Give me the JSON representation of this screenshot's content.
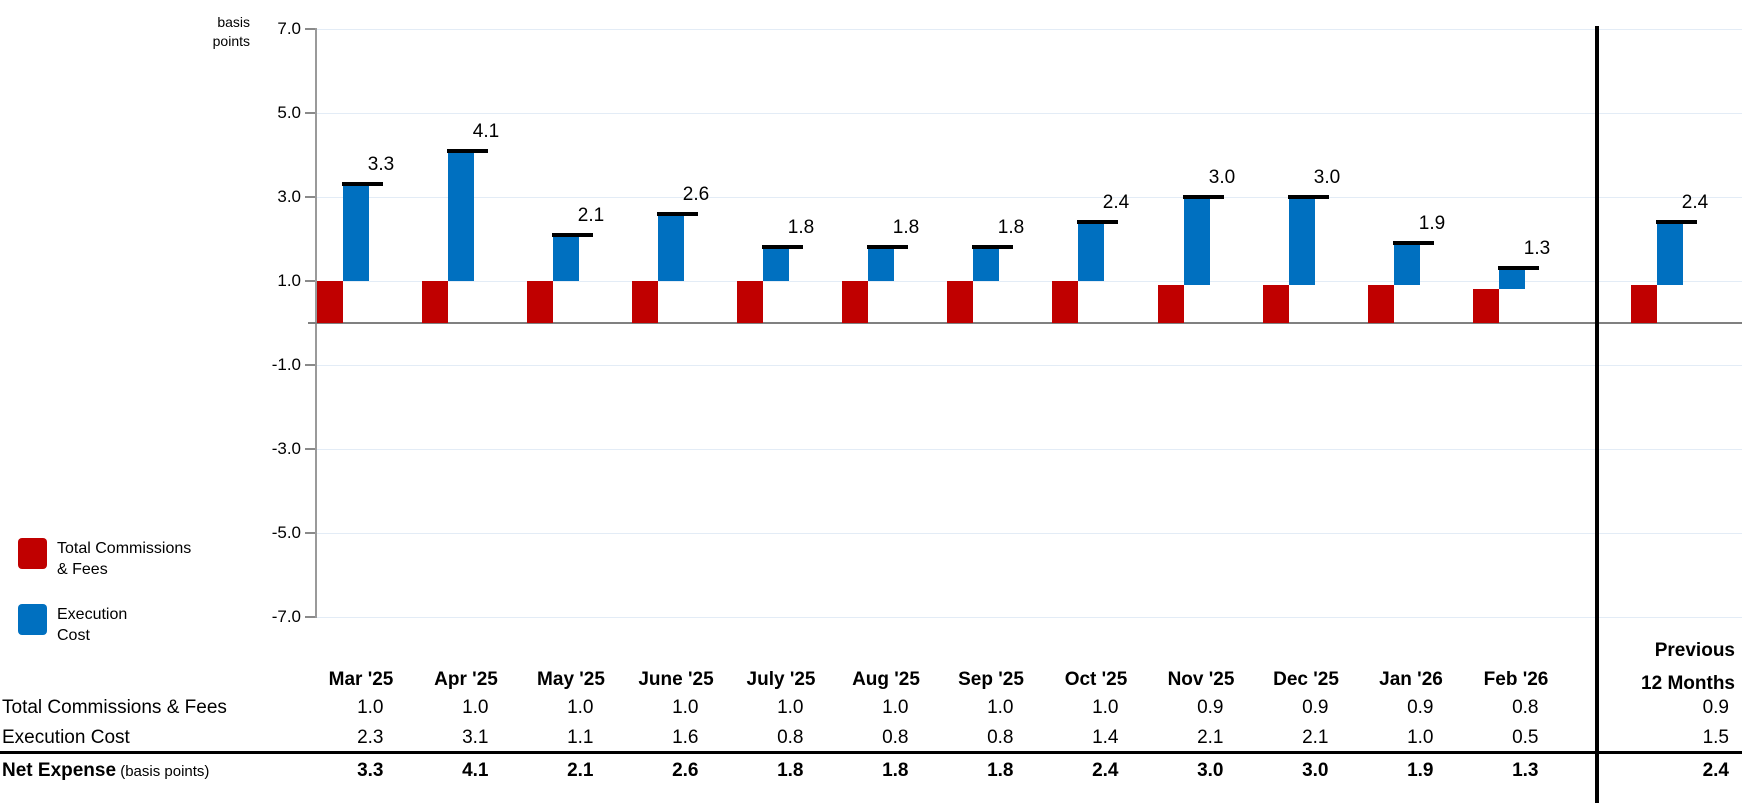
{
  "chart_data": {
    "type": "bar",
    "stacked": true,
    "title": "",
    "axis_title": "basis\npoints",
    "ylabel": "basis points",
    "ylim": [
      -7.0,
      7.0
    ],
    "grid": true,
    "y_ticks": [
      "7.0",
      "5.0",
      "3.0",
      "1.0",
      "-1.0",
      "-3.0",
      "-5.0",
      "-7.0"
    ],
    "categories": [
      "Mar '25",
      "Apr '25",
      "May '25",
      "June '25",
      "July '25",
      "Aug '25",
      "Sep '25",
      "Oct '25",
      "Nov '25",
      "Dec '25",
      "Jan '26",
      "Feb '26",
      "Previous 12 Months"
    ],
    "series": [
      {
        "name": "Total Commissions & Fees",
        "color": "#C00000",
        "values": [
          1.0,
          1.0,
          1.0,
          1.0,
          1.0,
          1.0,
          1.0,
          1.0,
          0.9,
          0.9,
          0.9,
          0.8,
          0.9
        ]
      },
      {
        "name": "Execution Cost",
        "color": "#0070C0",
        "values": [
          2.3,
          3.1,
          1.1,
          1.6,
          0.8,
          0.8,
          0.8,
          1.4,
          2.1,
          2.1,
          1.0,
          0.5,
          1.5
        ]
      }
    ],
    "totals": [
      "3.3",
      "4.1",
      "2.1",
      "2.6",
      "1.8",
      "1.8",
      "1.8",
      "2.4",
      "3.0",
      "3.0",
      "1.9",
      "1.3",
      "2.4"
    ],
    "legend_position": "bottom-left",
    "legend": [
      {
        "label": "Total Commissions\n& Fees",
        "color": "#C00000"
      },
      {
        "label": "Execution\nCost",
        "color": "#0070C0"
      }
    ]
  },
  "table": {
    "columns": [
      "Mar '25",
      "Apr '25",
      "May '25",
      "June '25",
      "July '25",
      "Aug '25",
      "Sep '25",
      "Oct '25",
      "Nov '25",
      "Dec '25",
      "Jan '26",
      "Feb '26"
    ],
    "last_column": "Previous\n12 Months",
    "rows": [
      {
        "label": "Total Commissions & Fees",
        "suffix": "",
        "bold": false,
        "values": [
          "1.0",
          "1.0",
          "1.0",
          "1.0",
          "1.0",
          "1.0",
          "1.0",
          "1.0",
          "0.9",
          "0.9",
          "0.9",
          "0.8"
        ],
        "previous": "0.9"
      },
      {
        "label": "Execution Cost",
        "suffix": "",
        "bold": false,
        "values": [
          "2.3",
          "3.1",
          "1.1",
          "1.6",
          "0.8",
          "0.8",
          "0.8",
          "1.4",
          "2.1",
          "2.1",
          "1.0",
          "0.5"
        ],
        "previous": "1.5"
      },
      {
        "label": "Net Expense",
        "suffix": " (basis points)",
        "bold": true,
        "values": [
          "3.3",
          "4.1",
          "2.1",
          "2.6",
          "1.8",
          "1.8",
          "1.8",
          "2.4",
          "3.0",
          "3.0",
          "1.9",
          "1.3"
        ],
        "previous": "2.4"
      }
    ]
  }
}
